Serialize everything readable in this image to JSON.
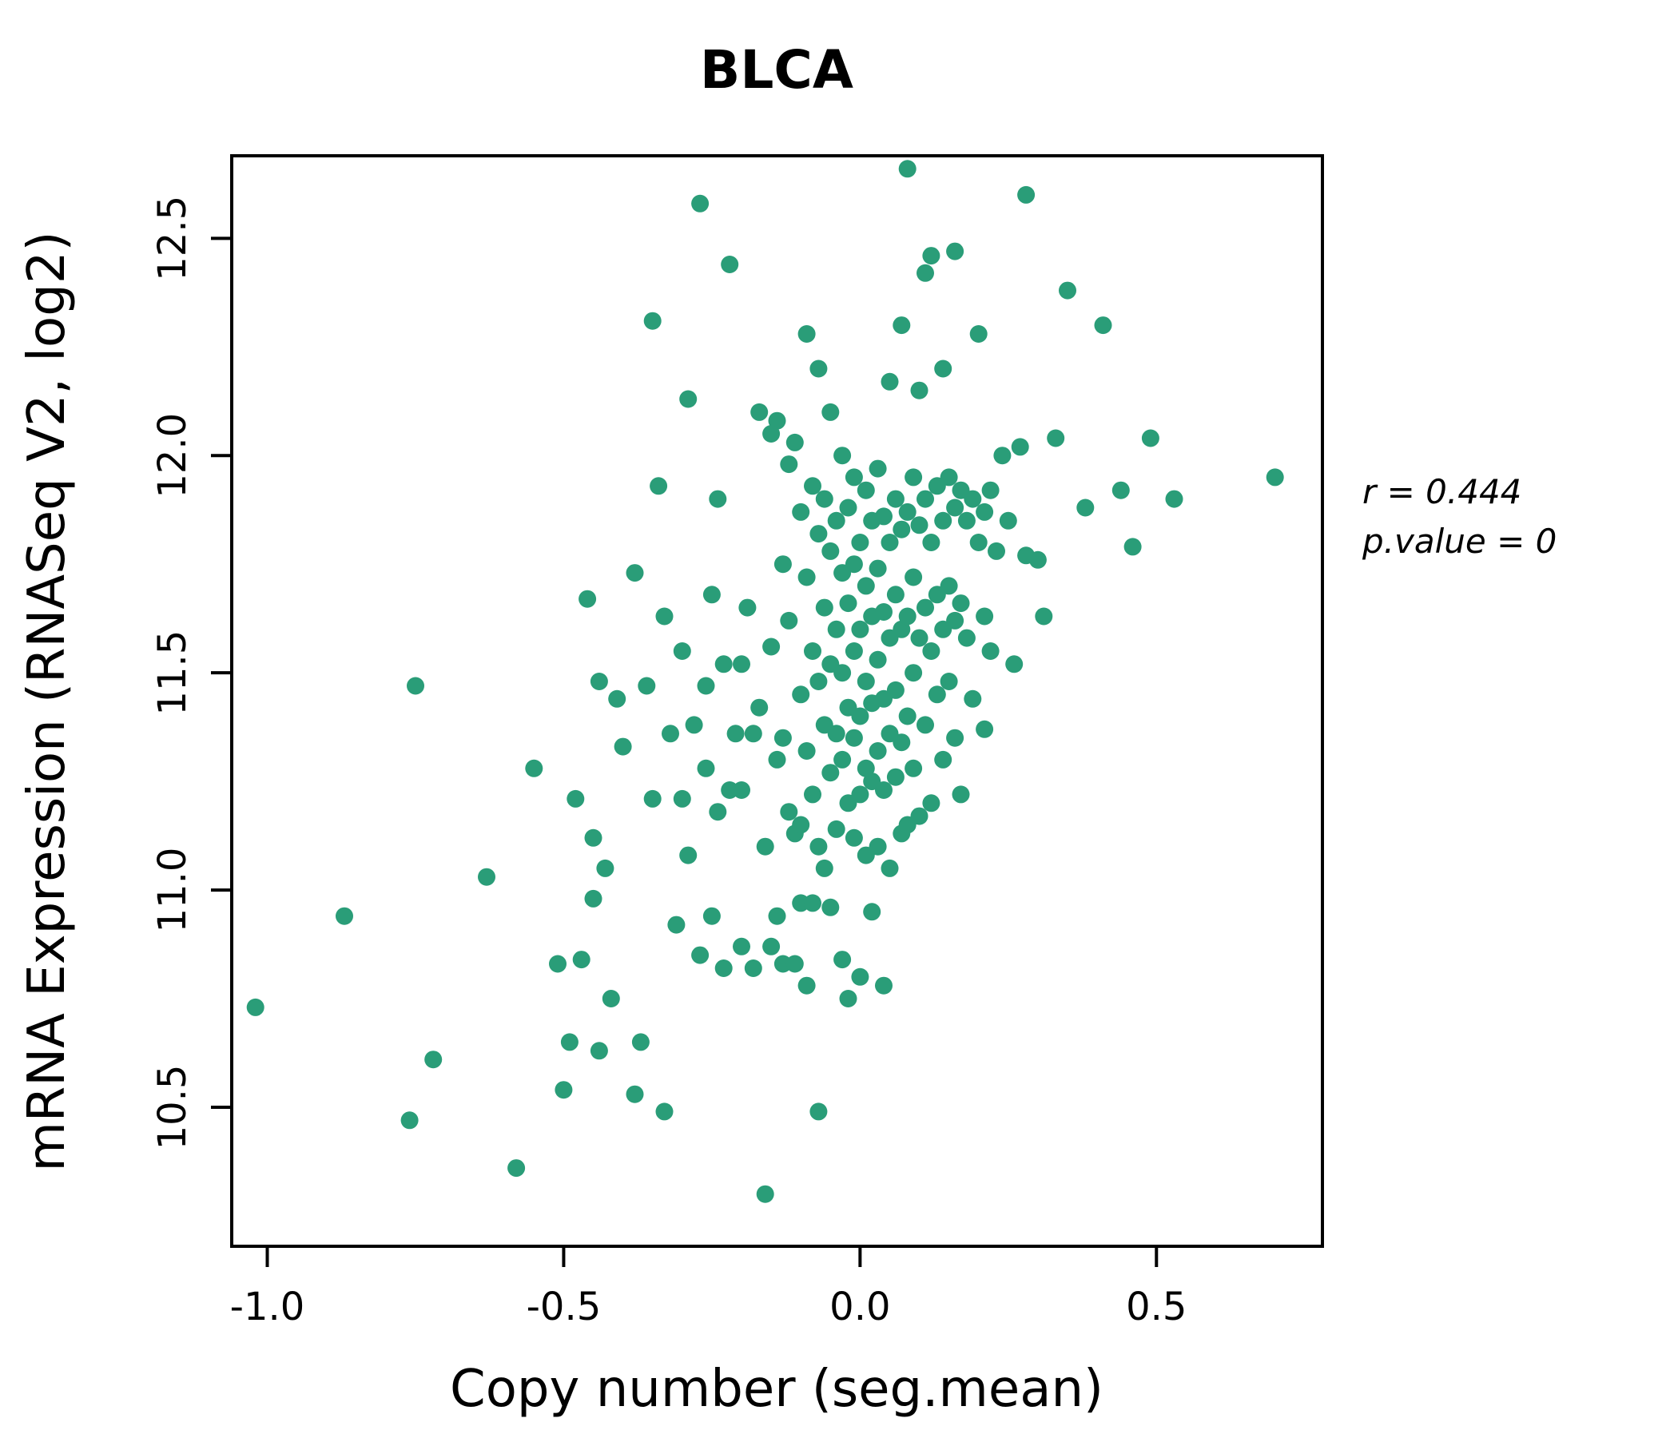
{
  "page": {
    "background": "#ffffff"
  },
  "chart_data": {
    "type": "scatter",
    "title": "BLCA",
    "xlabel": "Copy number (seg.mean)",
    "ylabel": "mRNA Expression (RNASeq V2, log2)",
    "xlim": [
      -1.06,
      0.78
    ],
    "ylim": [
      10.18,
      12.69
    ],
    "x_ticks": [
      {
        "value": -1.0,
        "label": "-1.0"
      },
      {
        "value": -0.5,
        "label": "-0.5"
      },
      {
        "value": 0.0,
        "label": "0.0"
      },
      {
        "value": 0.5,
        "label": "0.5"
      }
    ],
    "y_ticks": [
      {
        "value": 10.5,
        "label": "10.5"
      },
      {
        "value": 11.0,
        "label": "11.0"
      },
      {
        "value": 11.5,
        "label": "11.5"
      },
      {
        "value": 12.0,
        "label": "12.0"
      },
      {
        "value": 12.5,
        "label": "12.5"
      }
    ],
    "grid": false,
    "legend": "none",
    "point_color": "#2a9d78",
    "title_color": "#2a9d78",
    "border_color": "#000000",
    "r": 0.444,
    "p_value": 0,
    "annotations": [
      "r = 0.444",
      "p.value = 0"
    ],
    "points": [
      [
        -1.02,
        10.73
      ],
      [
        -0.87,
        10.94
      ],
      [
        -0.76,
        10.47
      ],
      [
        -0.75,
        11.47
      ],
      [
        -0.72,
        10.61
      ],
      [
        -0.63,
        11.03
      ],
      [
        -0.58,
        10.36
      ],
      [
        -0.55,
        11.28
      ],
      [
        -0.51,
        10.83
      ],
      [
        -0.5,
        10.54
      ],
      [
        -0.49,
        10.65
      ],
      [
        -0.48,
        11.21
      ],
      [
        -0.47,
        10.84
      ],
      [
        -0.46,
        11.67
      ],
      [
        -0.45,
        10.98
      ],
      [
        -0.45,
        11.12
      ],
      [
        -0.44,
        10.63
      ],
      [
        -0.44,
        11.48
      ],
      [
        -0.43,
        11.05
      ],
      [
        -0.42,
        10.75
      ],
      [
        -0.41,
        11.44
      ],
      [
        -0.4,
        11.33
      ],
      [
        -0.38,
        11.73
      ],
      [
        -0.38,
        10.53
      ],
      [
        -0.37,
        10.65
      ],
      [
        -0.36,
        11.47
      ],
      [
        -0.35,
        12.31
      ],
      [
        -0.35,
        11.21
      ],
      [
        -0.34,
        11.93
      ],
      [
        -0.33,
        10.49
      ],
      [
        -0.33,
        11.63
      ],
      [
        -0.32,
        11.36
      ],
      [
        -0.31,
        10.92
      ],
      [
        -0.3,
        11.21
      ],
      [
        -0.3,
        11.55
      ],
      [
        -0.29,
        12.13
      ],
      [
        -0.29,
        11.08
      ],
      [
        -0.28,
        11.38
      ],
      [
        -0.27,
        12.58
      ],
      [
        -0.27,
        10.85
      ],
      [
        -0.26,
        11.47
      ],
      [
        -0.26,
        11.28
      ],
      [
        -0.25,
        11.68
      ],
      [
        -0.25,
        10.94
      ],
      [
        -0.24,
        11.18
      ],
      [
        -0.24,
        11.9
      ],
      [
        -0.23,
        11.52
      ],
      [
        -0.23,
        10.82
      ],
      [
        -0.22,
        11.23
      ],
      [
        -0.22,
        12.44
      ],
      [
        -0.21,
        11.36
      ],
      [
        -0.2,
        11.52
      ],
      [
        -0.2,
        11.23
      ],
      [
        -0.2,
        10.87
      ],
      [
        -0.19,
        11.65
      ],
      [
        -0.18,
        11.36
      ],
      [
        -0.18,
        10.82
      ],
      [
        -0.17,
        12.1
      ],
      [
        -0.17,
        11.42
      ],
      [
        -0.16,
        11.1
      ],
      [
        -0.16,
        10.3
      ],
      [
        -0.15,
        12.05
      ],
      [
        -0.15,
        11.56
      ],
      [
        -0.15,
        10.87
      ],
      [
        -0.14,
        11.3
      ],
      [
        -0.14,
        10.94
      ],
      [
        -0.14,
        12.08
      ],
      [
        -0.13,
        11.75
      ],
      [
        -0.13,
        11.35
      ],
      [
        -0.13,
        10.83
      ],
      [
        -0.12,
        11.98
      ],
      [
        -0.12,
        11.18
      ],
      [
        -0.12,
        11.62
      ],
      [
        -0.11,
        12.03
      ],
      [
        -0.11,
        11.13
      ],
      [
        -0.11,
        10.83
      ],
      [
        -0.1,
        11.87
      ],
      [
        -0.1,
        11.45
      ],
      [
        -0.1,
        11.15
      ],
      [
        -0.1,
        10.97
      ],
      [
        -0.09,
        12.28
      ],
      [
        -0.09,
        11.72
      ],
      [
        -0.09,
        11.32
      ],
      [
        -0.09,
        10.78
      ],
      [
        -0.08,
        11.93
      ],
      [
        -0.08,
        11.55
      ],
      [
        -0.08,
        11.22
      ],
      [
        -0.08,
        10.97
      ],
      [
        -0.07,
        12.2
      ],
      [
        -0.07,
        11.82
      ],
      [
        -0.07,
        11.48
      ],
      [
        -0.07,
        11.1
      ],
      [
        -0.07,
        10.49
      ],
      [
        -0.06,
        11.9
      ],
      [
        -0.06,
        11.65
      ],
      [
        -0.06,
        11.38
      ],
      [
        -0.06,
        11.05
      ],
      [
        -0.05,
        12.1
      ],
      [
        -0.05,
        11.78
      ],
      [
        -0.05,
        11.52
      ],
      [
        -0.05,
        11.27
      ],
      [
        -0.05,
        10.96
      ],
      [
        -0.04,
        11.85
      ],
      [
        -0.04,
        11.6
      ],
      [
        -0.04,
        11.36
      ],
      [
        -0.04,
        11.14
      ],
      [
        -0.03,
        12.0
      ],
      [
        -0.03,
        11.73
      ],
      [
        -0.03,
        11.5
      ],
      [
        -0.03,
        11.3
      ],
      [
        -0.03,
        10.84
      ],
      [
        -0.02,
        11.88
      ],
      [
        -0.02,
        11.66
      ],
      [
        -0.02,
        11.42
      ],
      [
        -0.02,
        11.2
      ],
      [
        -0.02,
        10.75
      ],
      [
        -0.01,
        11.95
      ],
      [
        -0.01,
        11.75
      ],
      [
        -0.01,
        11.55
      ],
      [
        -0.01,
        11.35
      ],
      [
        -0.01,
        11.12
      ],
      [
        0.0,
        11.8
      ],
      [
        0.0,
        11.6
      ],
      [
        0.0,
        11.4
      ],
      [
        0.0,
        11.22
      ],
      [
        0.0,
        10.8
      ],
      [
        0.01,
        11.92
      ],
      [
        0.01,
        11.7
      ],
      [
        0.01,
        11.48
      ],
      [
        0.01,
        11.28
      ],
      [
        0.01,
        11.08
      ],
      [
        0.02,
        11.85
      ],
      [
        0.02,
        11.63
      ],
      [
        0.02,
        11.43
      ],
      [
        0.02,
        11.25
      ],
      [
        0.02,
        10.95
      ],
      [
        0.03,
        11.97
      ],
      [
        0.03,
        11.74
      ],
      [
        0.03,
        11.53
      ],
      [
        0.03,
        11.32
      ],
      [
        0.03,
        11.1
      ],
      [
        0.04,
        11.86
      ],
      [
        0.04,
        11.64
      ],
      [
        0.04,
        11.44
      ],
      [
        0.04,
        11.23
      ],
      [
        0.04,
        10.78
      ],
      [
        0.05,
        12.17
      ],
      [
        0.05,
        11.8
      ],
      [
        0.05,
        11.58
      ],
      [
        0.05,
        11.36
      ],
      [
        0.05,
        11.05
      ],
      [
        0.06,
        11.9
      ],
      [
        0.06,
        11.68
      ],
      [
        0.06,
        11.46
      ],
      [
        0.06,
        11.26
      ],
      [
        0.07,
        12.3
      ],
      [
        0.07,
        11.83
      ],
      [
        0.07,
        11.6
      ],
      [
        0.07,
        11.34
      ],
      [
        0.07,
        11.13
      ],
      [
        0.08,
        12.66
      ],
      [
        0.08,
        11.87
      ],
      [
        0.08,
        11.63
      ],
      [
        0.08,
        11.4
      ],
      [
        0.08,
        11.15
      ],
      [
        0.09,
        11.95
      ],
      [
        0.09,
        11.72
      ],
      [
        0.09,
        11.5
      ],
      [
        0.09,
        11.28
      ],
      [
        0.1,
        12.15
      ],
      [
        0.1,
        11.84
      ],
      [
        0.1,
        11.58
      ],
      [
        0.1,
        11.17
      ],
      [
        0.11,
        12.42
      ],
      [
        0.11,
        11.9
      ],
      [
        0.11,
        11.65
      ],
      [
        0.11,
        11.38
      ],
      [
        0.12,
        12.46
      ],
      [
        0.12,
        11.8
      ],
      [
        0.12,
        11.55
      ],
      [
        0.12,
        11.2
      ],
      [
        0.13,
        11.93
      ],
      [
        0.13,
        11.68
      ],
      [
        0.13,
        11.45
      ],
      [
        0.14,
        12.2
      ],
      [
        0.14,
        11.85
      ],
      [
        0.14,
        11.6
      ],
      [
        0.14,
        11.3
      ],
      [
        0.15,
        11.95
      ],
      [
        0.15,
        11.7
      ],
      [
        0.15,
        11.48
      ],
      [
        0.16,
        12.47
      ],
      [
        0.16,
        11.88
      ],
      [
        0.16,
        11.62
      ],
      [
        0.16,
        11.35
      ],
      [
        0.17,
        11.92
      ],
      [
        0.17,
        11.66
      ],
      [
        0.17,
        11.22
      ],
      [
        0.18,
        11.85
      ],
      [
        0.18,
        11.58
      ],
      [
        0.19,
        11.9
      ],
      [
        0.19,
        11.44
      ],
      [
        0.2,
        12.28
      ],
      [
        0.2,
        11.8
      ],
      [
        0.21,
        11.63
      ],
      [
        0.21,
        11.87
      ],
      [
        0.21,
        11.37
      ],
      [
        0.22,
        11.92
      ],
      [
        0.22,
        11.55
      ],
      [
        0.23,
        11.78
      ],
      [
        0.24,
        12.0
      ],
      [
        0.25,
        11.85
      ],
      [
        0.26,
        11.52
      ],
      [
        0.27,
        12.02
      ],
      [
        0.28,
        12.6
      ],
      [
        0.28,
        11.77
      ],
      [
        0.3,
        11.76
      ],
      [
        0.31,
        11.63
      ],
      [
        0.33,
        12.04
      ],
      [
        0.35,
        12.38
      ],
      [
        0.38,
        11.88
      ],
      [
        0.41,
        12.3
      ],
      [
        0.44,
        11.92
      ],
      [
        0.46,
        11.79
      ],
      [
        0.49,
        12.04
      ],
      [
        0.53,
        11.9
      ],
      [
        0.7,
        11.95
      ]
    ]
  }
}
